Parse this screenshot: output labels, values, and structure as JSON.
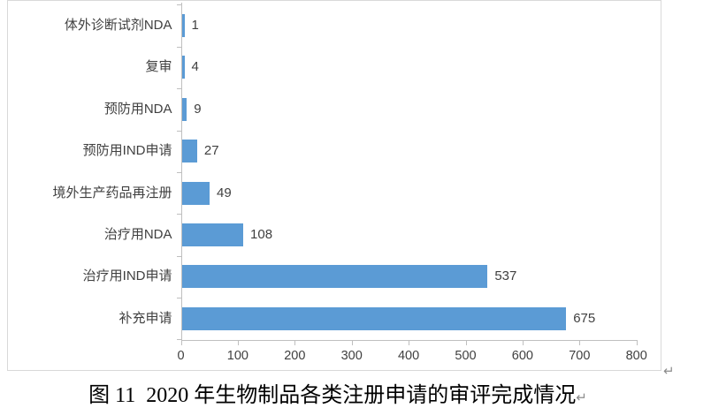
{
  "figure": {
    "caption": "图 11  2020 年生物制品各类注册申请的审评完成情况",
    "paragraph_mark": "↵"
  },
  "chart_data": {
    "type": "bar",
    "orientation": "horizontal",
    "title": "",
    "xlabel": "",
    "ylabel": "",
    "categories": [
      "体外诊断试剂NDA",
      "复审",
      "预防用NDA",
      "预防用IND申请",
      "境外生产药品再注册",
      "治疗用NDA",
      "治疗用IND申请",
      "补充申请"
    ],
    "values": [
      1,
      4,
      9,
      27,
      49,
      108,
      537,
      675
    ],
    "category_order": "top-to-bottom",
    "data_labels_shown": true,
    "xlim": [
      0,
      800
    ],
    "x_ticks": [
      0,
      100,
      200,
      300,
      400,
      500,
      600,
      700,
      800
    ],
    "grid": false,
    "legend": "none",
    "colors": {
      "bar": "#5b9bd5",
      "axis": "#bfbfbf",
      "text": "#404040",
      "frame_border": "#d9d9d9"
    }
  }
}
